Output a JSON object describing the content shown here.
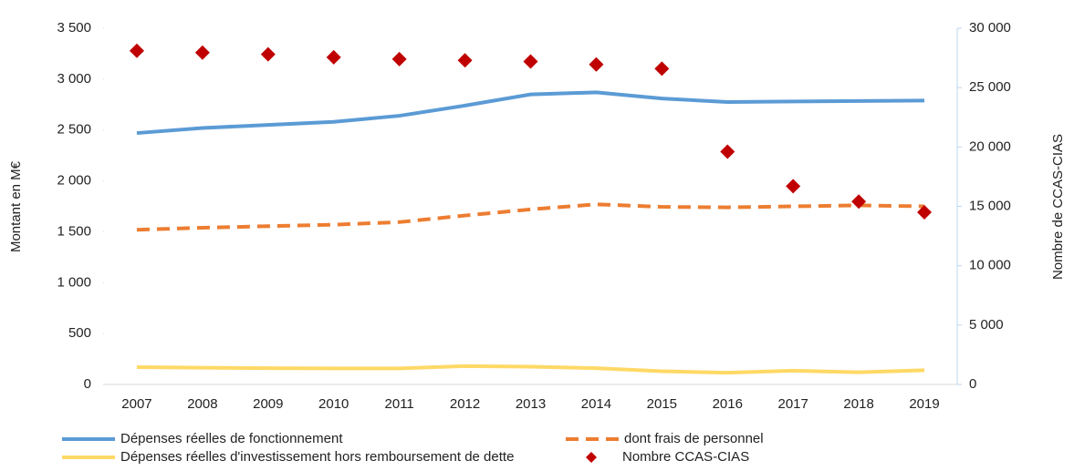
{
  "chart_data": {
    "type": "line",
    "y_label": "Montant en M€",
    "y2_label": "Nombre de CCAS-CIAS",
    "categories": [
      "2007",
      "2008",
      "2009",
      "2010",
      "2011",
      "2012",
      "2013",
      "2014",
      "2015",
      "2016",
      "2017",
      "2018",
      "2019"
    ],
    "ylim": [
      0,
      3500
    ],
    "yticks": [
      0,
      500,
      {
        "value": 1000,
        "label": "1 000"
      },
      {
        "value": 1500,
        "label": "1 500"
      },
      {
        "value": 2000,
        "label": "2 000"
      },
      {
        "value": 2500,
        "label": "2 500"
      },
      {
        "value": 3000,
        "label": "3 000"
      },
      {
        "value": 3500,
        "label": "3 500"
      }
    ],
    "y2lim": [
      0,
      30000
    ],
    "y2ticks": [
      0,
      {
        "value": 5000,
        "label": "5 000"
      },
      {
        "value": 10000,
        "label": "10 000"
      },
      {
        "value": 15000,
        "label": "15 000"
      },
      {
        "value": 20000,
        "label": "20 000"
      },
      {
        "value": 25000,
        "label": "25 000"
      },
      {
        "value": 30000,
        "label": "30 000"
      }
    ],
    "series": [
      {
        "name": "Dépenses réelles de fonctionnement",
        "color": "#5b9bd5",
        "dashed": false,
        "values": [
          2470,
          2520,
          2550,
          2580,
          2640,
          2740,
          2850,
          2870,
          2810,
          2775,
          2780,
          2785,
          2790
        ]
      },
      {
        "name": "dont frais de personnel",
        "color": "#ed7d31",
        "dashed": true,
        "values": [
          1520,
          1540,
          1555,
          1570,
          1595,
          1660,
          1720,
          1770,
          1745,
          1740,
          1750,
          1760,
          1750
        ]
      },
      {
        "name": "Dépenses réelles d'investissement hors remboursement de dette",
        "color": "#ffd966",
        "dashed": false,
        "values": [
          170,
          165,
          160,
          158,
          158,
          180,
          175,
          160,
          130,
          115,
          135,
          120,
          140
        ]
      },
      {
        "name": "Nombre CCAS-CIAS",
        "color": "#c00000",
        "marker": "diamond",
        "axis": "y2",
        "values": [
          28100,
          27950,
          27800,
          27550,
          27400,
          27300,
          27200,
          26950,
          26600,
          19600,
          16700,
          15400,
          14500
        ]
      }
    ]
  }
}
